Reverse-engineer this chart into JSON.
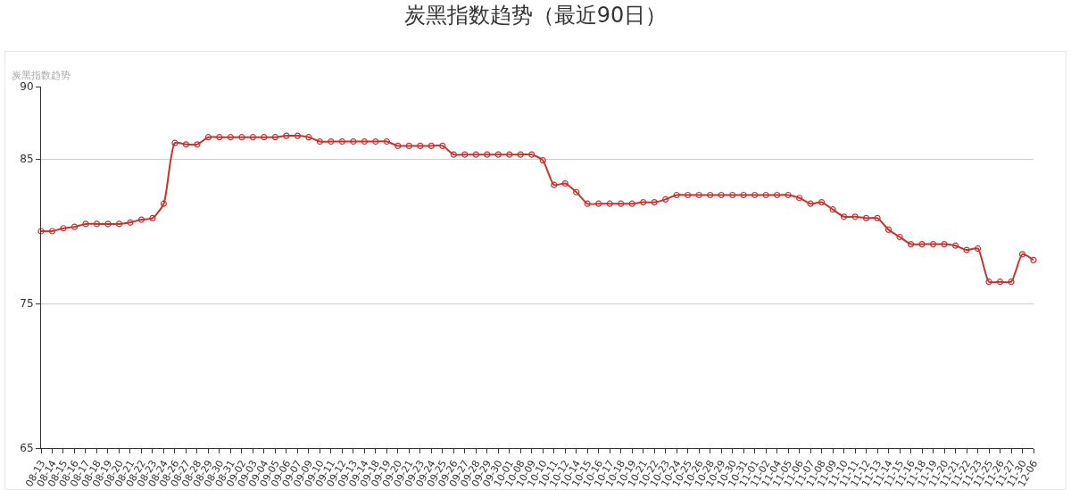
{
  "chart_data": {
    "type": "line",
    "title": "炭黑指数趋势（最近90日）",
    "ylabel": "炭黑指数趋势",
    "categories": [
      "08-13",
      "08-14",
      "08-15",
      "08-16",
      "08-17",
      "08-18",
      "08-19",
      "08-20",
      "08-21",
      "08-22",
      "08-23",
      "08-24",
      "08-26",
      "08-27",
      "08-28",
      "08-29",
      "08-30",
      "08-31",
      "09-02",
      "09-03",
      "09-04",
      "09-05",
      "09-06",
      "09-07",
      "09-09",
      "09-10",
      "09-11",
      "09-12",
      "09-13",
      "09-14",
      "09-18",
      "09-19",
      "09-20",
      "09-21",
      "09-23",
      "09-24",
      "09-25",
      "09-26",
      "09-27",
      "09-28",
      "09-29",
      "09-30",
      "10-01",
      "10-08",
      "10-09",
      "10-10",
      "10-11",
      "10-12",
      "10-14",
      "10-15",
      "10-16",
      "10-17",
      "10-18",
      "10-19",
      "10-21",
      "10-22",
      "10-23",
      "10-24",
      "10-25",
      "10-26",
      "10-28",
      "10-29",
      "10-30",
      "10-31",
      "11-01",
      "11-02",
      "11-04",
      "11-05",
      "11-06",
      "11-07",
      "11-08",
      "11-09",
      "11-10",
      "11-11",
      "11-12",
      "11-13",
      "11-14",
      "11-15",
      "11-16",
      "11-18",
      "11-19",
      "11-20",
      "11-21",
      "11-22",
      "11-23",
      "11-25",
      "11-26",
      "11-27",
      "11-30",
      "12-06"
    ],
    "series": [
      {
        "color": "#c23531",
        "values": [
          80.0,
          80.0,
          80.2,
          80.3,
          80.5,
          80.5,
          80.5,
          80.5,
          80.6,
          80.8,
          80.9,
          81.9,
          86.1,
          86.0,
          86.0,
          86.5,
          86.5,
          86.5,
          86.5,
          86.5,
          86.5,
          86.5,
          86.6,
          86.6,
          86.5,
          86.2,
          86.2,
          86.2,
          86.2,
          86.2,
          86.2,
          86.2,
          85.9,
          85.9,
          85.9,
          85.9,
          85.9,
          85.3,
          85.3,
          85.3,
          85.3,
          85.3,
          85.3,
          85.3,
          85.3,
          84.9,
          83.2,
          83.3,
          82.7,
          81.9,
          81.9,
          81.9,
          81.9,
          81.9,
          82.0,
          82.0,
          82.2,
          82.5,
          82.5,
          82.5,
          82.5,
          82.5,
          82.5,
          82.5,
          82.5,
          82.5,
          82.5,
          82.5,
          82.3,
          81.9,
          82.0,
          81.5,
          81.0,
          81.0,
          80.9,
          80.9,
          80.1,
          79.6,
          79.1,
          79.1,
          79.1,
          79.1,
          79.0,
          78.7,
          78.8,
          76.5,
          76.5,
          76.5,
          78.4,
          78.0
        ]
      }
    ],
    "ylim": [
      65,
      90
    ],
    "yticks": [
      65,
      75,
      85,
      90
    ],
    "grid": "y",
    "marker": "circle",
    "line_style": "solid"
  }
}
